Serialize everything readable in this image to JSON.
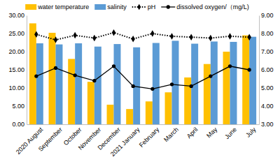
{
  "chart_data": {
    "type": "bar",
    "categories": [
      "2020 August",
      "September",
      "October",
      "November",
      "December",
      "2021 January",
      "February",
      "March",
      "April",
      "May",
      "June",
      "July"
    ],
    "series": [
      {
        "name": "water temperature",
        "type": "bar",
        "color": "#ffc000",
        "values": [
          27.8,
          25.2,
          18.0,
          11.7,
          5.4,
          4.2,
          6.3,
          8.8,
          12.9,
          16.6,
          20.0,
          24.5
        ]
      },
      {
        "name": "salinity",
        "type": "bar",
        "color": "#5b9bd5",
        "values": [
          22.3,
          22.0,
          22.3,
          21.4,
          22.1,
          21.2,
          22.4,
          23.0,
          22.2,
          22.8,
          22.7,
          24.1
        ]
      },
      {
        "name": "pH",
        "type": "line",
        "color": "#000000",
        "marker": "diamond",
        "line_style": "dotted",
        "axis": "y2",
        "values": [
          7.95,
          7.65,
          7.9,
          7.75,
          8.05,
          7.7,
          8.0,
          7.85,
          7.8,
          7.75,
          7.85,
          7.8
        ]
      },
      {
        "name": "dissolved oxygen/（mg/L)",
        "type": "line",
        "color": "#000000",
        "marker": "circle",
        "line_style": "solid",
        "axis": "y2",
        "values": [
          5.65,
          6.1,
          5.7,
          5.4,
          6.2,
          5.1,
          4.95,
          5.2,
          5.1,
          5.65,
          6.2,
          6.0
        ]
      }
    ],
    "ylim": [
      0,
      30
    ],
    "yticks": [
      {
        "value": 0,
        "label": "0.00"
      },
      {
        "value": 5,
        "label": "5.00"
      },
      {
        "value": 10,
        "label": "10.00"
      },
      {
        "value": 15,
        "label": "15.00"
      },
      {
        "value": 20,
        "label": "20.00"
      },
      {
        "value": 25,
        "label": "25.00"
      },
      {
        "value": 30,
        "label": "30.00"
      }
    ],
    "y2lim": [
      3,
      9
    ],
    "y2ticks": [
      {
        "value": 3,
        "label": "3.00"
      },
      {
        "value": 4,
        "label": "4.00"
      },
      {
        "value": 5,
        "label": "5.00"
      },
      {
        "value": 6,
        "label": "6.00"
      },
      {
        "value": 7,
        "label": "7.00"
      },
      {
        "value": 8,
        "label": "8.00"
      },
      {
        "value": 9,
        "label": "9.00"
      }
    ],
    "grid": false,
    "legend": "top"
  }
}
